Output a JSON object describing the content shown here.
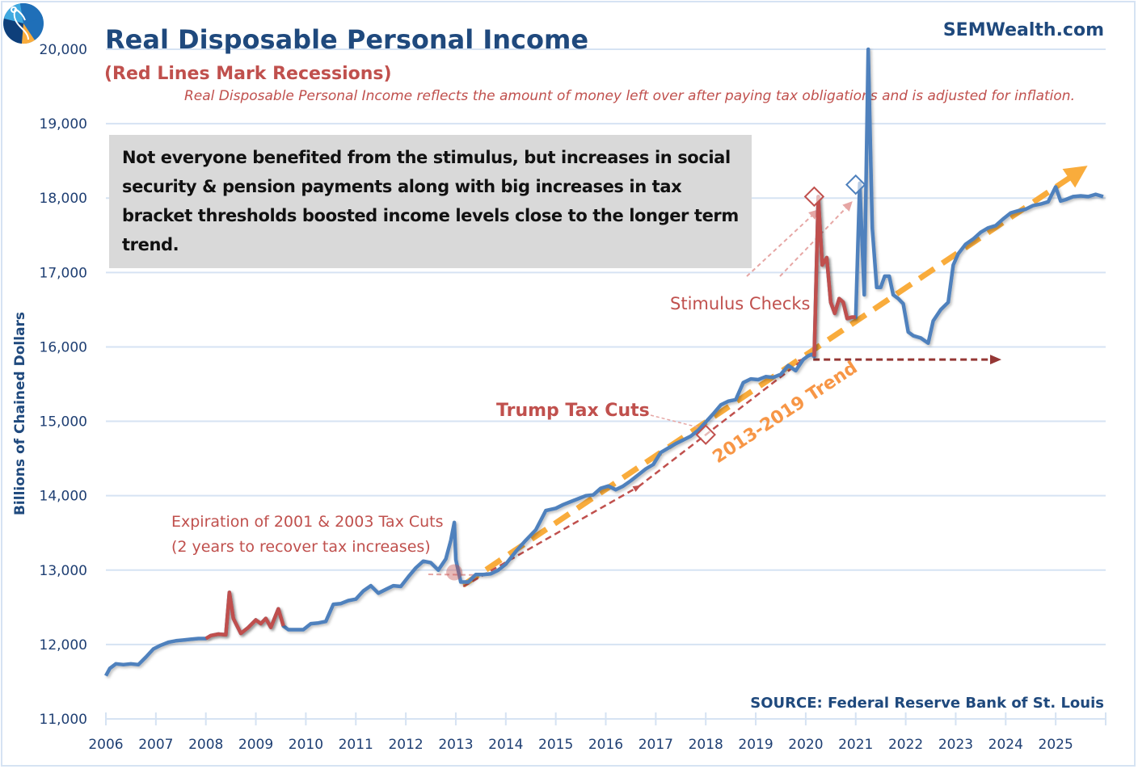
{
  "header": {
    "title": "Real Disposable Personal Income",
    "subtitle": "(Red Lines Mark Recessions)",
    "description": "Real Disposable Personal Income reflects the amount of money left over after paying tax obligations and is adjusted for inflation.",
    "brand": "SEMWealth.com",
    "source": "SOURCE:  Federal Reserve Bank of St. Louis",
    "logo_icon": "sem-pie-logo-icon"
  },
  "note": "Not everyone benefited from the stimulus, but increases in social security & pension payments along with big increases in tax bracket thresholds boosted income levels close to the longer term trend.",
  "annotations": {
    "tax_expiration_line1": "Expiration of 2001 & 2003 Tax Cuts",
    "tax_expiration_line2": "(2 years to recover tax increases)",
    "trump_tax_cuts": "Trump Tax Cuts",
    "stimulus_checks": "Stimulus Checks",
    "trend_label": "2013-2019 Trend"
  },
  "colors": {
    "series": "#4f81bd",
    "recession": "#c0504d",
    "trend": "#f9ac3c",
    "arrow_dark": "#953735",
    "grid": "#d6e3f3",
    "axis_text": "#1f3f73"
  },
  "chart_data": {
    "type": "line",
    "title": "Real Disposable Personal Income",
    "xlabel": "",
    "ylabel": "Billions of Chained Dollars",
    "xlim": [
      2006.0,
      2026.0
    ],
    "ylim": [
      11000,
      20000
    ],
    "grid": true,
    "x_ticks": [
      "2006",
      "2007",
      "2008",
      "2009",
      "2010",
      "2011",
      "2012",
      "2013",
      "2014",
      "2015",
      "2016",
      "2017",
      "2018",
      "2019",
      "2020",
      "2021",
      "2022",
      "2023",
      "2024",
      "2025"
    ],
    "y_ticks": [
      "11,000",
      "12,000",
      "13,000",
      "14,000",
      "15,000",
      "16,000",
      "17,000",
      "18,000",
      "19,000",
      "20,000"
    ],
    "series": [
      {
        "name": "Real Disposable Personal Income",
        "x": [
          2006.0,
          2006.08,
          2006.2,
          2006.35,
          2006.5,
          2006.65,
          2006.8,
          2006.95,
          2007.1,
          2007.25,
          2007.4,
          2007.55,
          2007.7,
          2007.85,
          2008.0,
          2008.1,
          2008.25,
          2008.4,
          2008.47,
          2008.55,
          2008.7,
          2008.85,
          2009.0,
          2009.1,
          2009.2,
          2009.3,
          2009.45,
          2009.55,
          2009.65,
          2009.8,
          2009.95,
          2010.1,
          2010.25,
          2010.4,
          2010.55,
          2010.7,
          2010.85,
          2011.0,
          2011.15,
          2011.3,
          2011.45,
          2011.6,
          2011.75,
          2011.9,
          2012.05,
          2012.2,
          2012.35,
          2012.5,
          2012.65,
          2012.8,
          2012.9,
          2012.97,
          2013.0,
          2013.1,
          2013.25,
          2013.4,
          2013.55,
          2013.7,
          2013.85,
          2014.0,
          2014.2,
          2014.4,
          2014.6,
          2014.8,
          2015.0,
          2015.15,
          2015.3,
          2015.45,
          2015.6,
          2015.75,
          2015.9,
          2016.05,
          2016.2,
          2016.35,
          2016.5,
          2016.65,
          2016.8,
          2016.95,
          2017.1,
          2017.25,
          2017.4,
          2017.55,
          2017.7,
          2017.85,
          2018.0,
          2018.15,
          2018.3,
          2018.45,
          2018.6,
          2018.75,
          2018.9,
          2019.05,
          2019.2,
          2019.35,
          2019.5,
          2019.65,
          2019.8,
          2019.95,
          2020.05,
          2020.12,
          2020.17,
          2020.17,
          2020.25,
          2020.33,
          2020.42,
          2020.5,
          2020.58,
          2020.67,
          2020.75,
          2020.83,
          2020.92,
          2021.0,
          2021.0,
          2021.08,
          2021.17,
          2021.25,
          2021.33,
          2021.42,
          2021.5,
          2021.58,
          2021.67,
          2021.75,
          2021.85,
          2021.95,
          2022.05,
          2022.15,
          2022.3,
          2022.45,
          2022.55,
          2022.7,
          2022.85,
          2022.95,
          2023.05,
          2023.2,
          2023.35,
          2023.5,
          2023.65,
          2023.8,
          2023.95,
          2024.1,
          2024.25,
          2024.4,
          2024.55,
          2024.7,
          2024.85,
          2025.0,
          2025.1,
          2025.2,
          2025.35,
          2025.5,
          2025.65,
          2025.8,
          2025.95
        ],
        "values": [
          11580,
          11680,
          11740,
          11730,
          11740,
          11730,
          11830,
          11940,
          11990,
          12030,
          12050,
          12060,
          12070,
          12080,
          12080,
          12120,
          12140,
          12130,
          12700,
          12350,
          12150,
          12230,
          12330,
          12280,
          12350,
          12230,
          12480,
          12250,
          12200,
          12200,
          12200,
          12280,
          12290,
          12310,
          12540,
          12550,
          12590,
          12610,
          12720,
          12790,
          12690,
          12740,
          12790,
          12780,
          12910,
          13030,
          13120,
          13100,
          13000,
          13150,
          13400,
          13640,
          13140,
          12840,
          12840,
          12940,
          12940,
          12950,
          13000,
          13080,
          13250,
          13400,
          13540,
          13800,
          13830,
          13880,
          13920,
          13960,
          14000,
          14010,
          14100,
          14130,
          14080,
          14130,
          14200,
          14280,
          14360,
          14420,
          14580,
          14640,
          14700,
          14750,
          14800,
          14880,
          14990,
          15100,
          15220,
          15270,
          15290,
          15520,
          15570,
          15560,
          15600,
          15590,
          15630,
          15750,
          15680,
          15830,
          15880,
          15900,
          15870,
          15870,
          18020,
          17100,
          17200,
          16600,
          16450,
          16650,
          16600,
          16380,
          16400,
          16400,
          16400,
          18200,
          16700,
          20000,
          17600,
          16800,
          16800,
          16950,
          16950,
          16700,
          16650,
          16580,
          16200,
          16150,
          16120,
          16050,
          16350,
          16500,
          16600,
          17100,
          17250,
          17380,
          17450,
          17540,
          17600,
          17630,
          17720,
          17800,
          17830,
          17850,
          17900,
          17920,
          17950,
          18150,
          17960,
          17980,
          18020,
          18030,
          18020,
          18050,
          18020
        ]
      }
    ],
    "recession_segments": [
      {
        "from": 2008.0,
        "to": 2009.6
      },
      {
        "from": 2020.17,
        "to": 2021.0
      }
    ],
    "trend": {
      "name": "2013-2019 Trend",
      "x": [
        2013.15,
        2025.45
      ],
      "y": [
        12800,
        18350
      ]
    },
    "arrows": [
      {
        "name": "recovery-arrow",
        "x": [
          2013.15,
          2016.65
        ],
        "y": [
          12780,
          14120
        ]
      },
      {
        "name": "trump-arrow",
        "x": [
          2016.65,
          2019.95
        ],
        "y": [
          14120,
          15830
        ]
      },
      {
        "name": "stimulus-flat-arrow",
        "x": [
          2020.15,
          2023.85
        ],
        "y": [
          15830,
          15830
        ]
      }
    ],
    "markers": [
      {
        "name": "tax-expiration-marker",
        "x": 2012.97,
        "y": 12970,
        "shape": "circle"
      },
      {
        "name": "trump-tax-cut-marker",
        "x": 2018.0,
        "y": 14820,
        "shape": "diamond"
      },
      {
        "name": "stimulus-1-marker",
        "x": 2020.17,
        "y": 18020,
        "shape": "diamond"
      },
      {
        "name": "stimulus-2-marker",
        "x": 2021.0,
        "y": 18180,
        "shape": "diamond"
      }
    ]
  }
}
